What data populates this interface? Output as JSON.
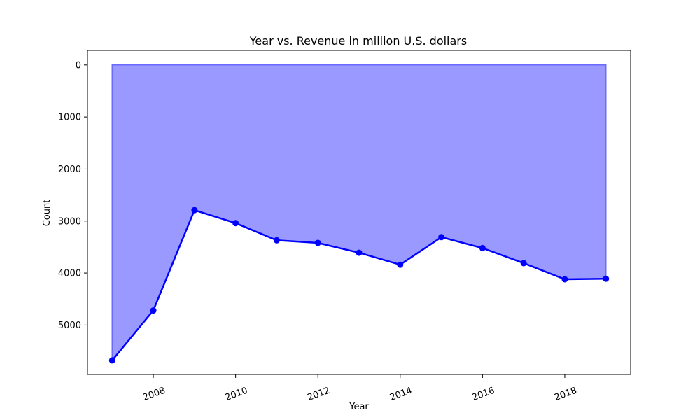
{
  "chart_data": {
    "type": "area",
    "title": "Year vs. Revenue in million U.S. dollars",
    "xlabel": "Year",
    "ylabel": "Count",
    "x": [
      2007,
      2008,
      2009,
      2010,
      2011,
      2012,
      2013,
      2014,
      2015,
      2016,
      2017,
      2018,
      2019
    ],
    "series": [
      {
        "values": [
          5680,
          4720,
          2790,
          3040,
          3370,
          3420,
          3610,
          3840,
          3310,
          3520,
          3810,
          4120,
          4110
        ],
        "color": "#0000ff",
        "fill_color": "#9999ff"
      }
    ],
    "xlim": [
      2006.4,
      2019.6
    ],
    "ylim": [
      5950,
      -280
    ],
    "y_inverted": true,
    "xticks": [
      "2008",
      "2010",
      "2012",
      "2014",
      "2016",
      "2018"
    ],
    "yticks": [
      "0",
      "1000",
      "2000",
      "3000",
      "4000",
      "5000"
    ],
    "grid": false,
    "legend": "none"
  }
}
